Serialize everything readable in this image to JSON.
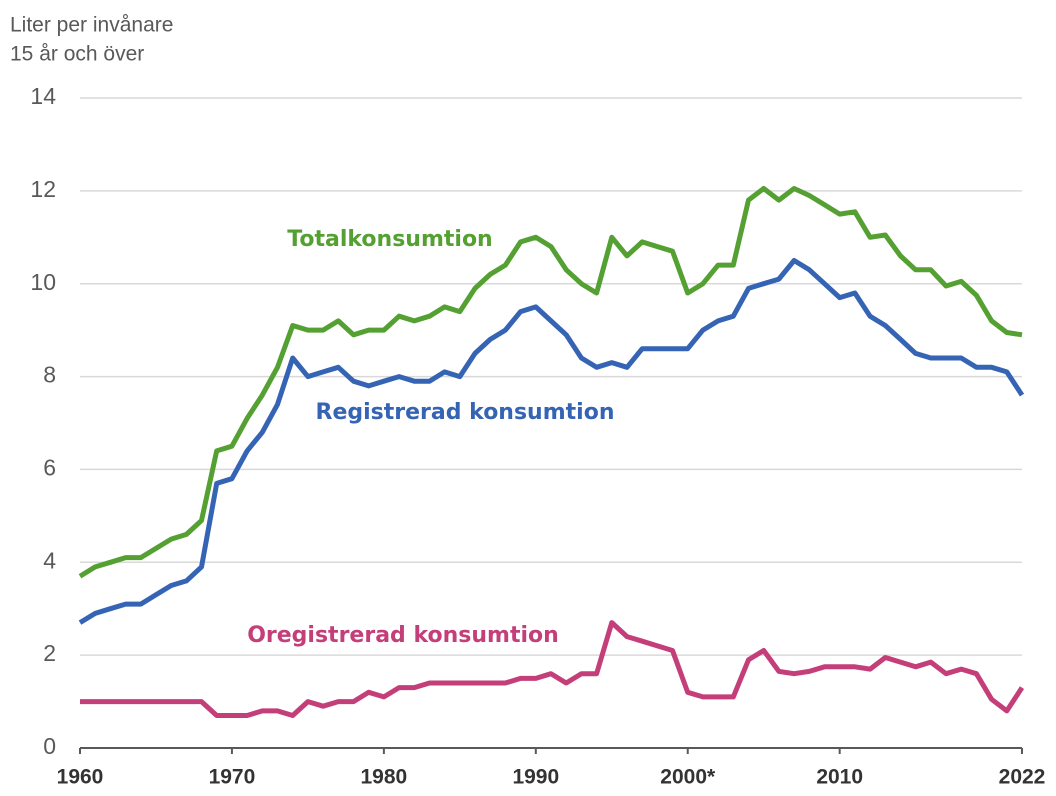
{
  "chart_data": {
    "type": "line",
    "y_label": [
      "Liter per invånare",
      "15 år och över"
    ],
    "x": [
      1960,
      1961,
      1962,
      1963,
      1964,
      1965,
      1966,
      1967,
      1968,
      1969,
      1970,
      1971,
      1972,
      1973,
      1974,
      1975,
      1976,
      1977,
      1978,
      1979,
      1980,
      1981,
      1982,
      1983,
      1984,
      1985,
      1986,
      1987,
      1988,
      1989,
      1990,
      1991,
      1992,
      1993,
      1994,
      1995,
      1996,
      1997,
      1998,
      1999,
      2000,
      2001,
      2002,
      2003,
      2004,
      2005,
      2006,
      2007,
      2008,
      2009,
      2010,
      2011,
      2012,
      2013,
      2014,
      2015,
      2016,
      2017,
      2018,
      2019,
      2020,
      2021,
      2022
    ],
    "series": [
      {
        "name": "Totalkonsumtion",
        "color": "#55a032",
        "values": [
          3.7,
          3.9,
          4.0,
          4.1,
          4.1,
          4.3,
          4.5,
          4.6,
          4.9,
          6.4,
          6.5,
          7.1,
          7.6,
          8.2,
          9.1,
          9.0,
          9.0,
          9.2,
          8.9,
          9.0,
          9.0,
          9.3,
          9.2,
          9.3,
          9.5,
          9.4,
          9.9,
          10.2,
          10.4,
          10.9,
          11.0,
          10.8,
          10.3,
          10.0,
          9.8,
          11.0,
          10.6,
          10.9,
          10.8,
          10.7,
          9.8,
          10.0,
          10.4,
          10.4,
          11.8,
          12.05,
          11.8,
          12.05,
          11.9,
          11.7,
          11.5,
          11.55,
          11.0,
          11.05,
          10.6,
          10.3,
          10.3,
          9.95,
          10.05,
          9.75,
          9.2,
          8.95,
          8.9
        ]
      },
      {
        "name": "Registrerad konsumtion",
        "color": "#3564b4",
        "values": [
          2.7,
          2.9,
          3.0,
          3.1,
          3.1,
          3.3,
          3.5,
          3.6,
          3.9,
          5.7,
          5.8,
          6.4,
          6.8,
          7.4,
          8.4,
          8.0,
          8.1,
          8.2,
          7.9,
          7.8,
          7.9,
          8.0,
          7.9,
          7.9,
          8.1,
          8.0,
          8.5,
          8.8,
          9.0,
          9.4,
          9.5,
          9.2,
          8.9,
          8.4,
          8.2,
          8.3,
          8.2,
          8.6,
          8.6,
          8.6,
          8.6,
          9.0,
          9.2,
          9.3,
          9.9,
          10.0,
          10.1,
          10.5,
          10.3,
          10.0,
          9.7,
          9.8,
          9.3,
          9.1,
          8.8,
          8.5,
          8.4,
          8.4,
          8.4,
          8.2,
          8.2,
          8.1,
          7.6
        ]
      },
      {
        "name": "Oregistrerad konsumtion",
        "color": "#c43f7a",
        "values": [
          1.0,
          1.0,
          1.0,
          1.0,
          1.0,
          1.0,
          1.0,
          1.0,
          1.0,
          0.7,
          0.7,
          0.7,
          0.8,
          0.8,
          0.7,
          1.0,
          0.9,
          1.0,
          1.0,
          1.2,
          1.1,
          1.3,
          1.3,
          1.4,
          1.4,
          1.4,
          1.4,
          1.4,
          1.4,
          1.5,
          1.5,
          1.6,
          1.4,
          1.6,
          1.6,
          2.7,
          2.4,
          2.3,
          2.2,
          2.1,
          1.2,
          1.1,
          1.1,
          1.1,
          1.9,
          2.1,
          1.65,
          1.6,
          1.65,
          1.75,
          1.75,
          1.75,
          1.7,
          1.95,
          1.85,
          1.75,
          1.85,
          1.6,
          1.7,
          1.6,
          1.05,
          0.8,
          1.3
        ]
      }
    ],
    "xlim": [
      1960,
      2022
    ],
    "xticks": [
      1960,
      1970,
      1980,
      1990,
      {
        "value": 2000,
        "label": "2000*"
      },
      2010,
      2022
    ],
    "ylim": [
      0,
      14
    ],
    "yticks": [
      0,
      2,
      4,
      6,
      8,
      10,
      12,
      14
    ],
    "grid": true
  }
}
